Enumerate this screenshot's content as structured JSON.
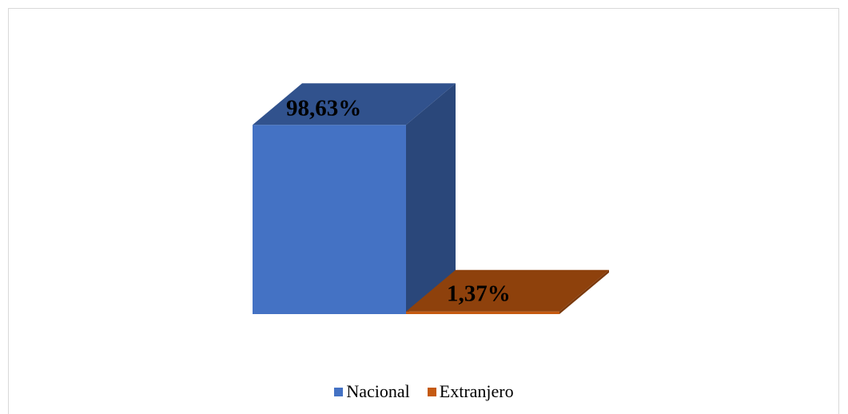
{
  "chart_data": {
    "type": "bar",
    "style": "3d-column",
    "categories": [
      "Nacional",
      "Extranjero"
    ],
    "values": [
      98.63,
      1.37
    ],
    "data_labels": [
      "98,63%",
      "1,37%"
    ],
    "colors": [
      "#4472c4",
      "#c55a11"
    ],
    "ylim": [
      0,
      100
    ],
    "title": "",
    "xlabel": "",
    "ylabel": "",
    "grid": false,
    "legend_position": "bottom",
    "legend": [
      "Nacional",
      "Extranjero"
    ]
  }
}
